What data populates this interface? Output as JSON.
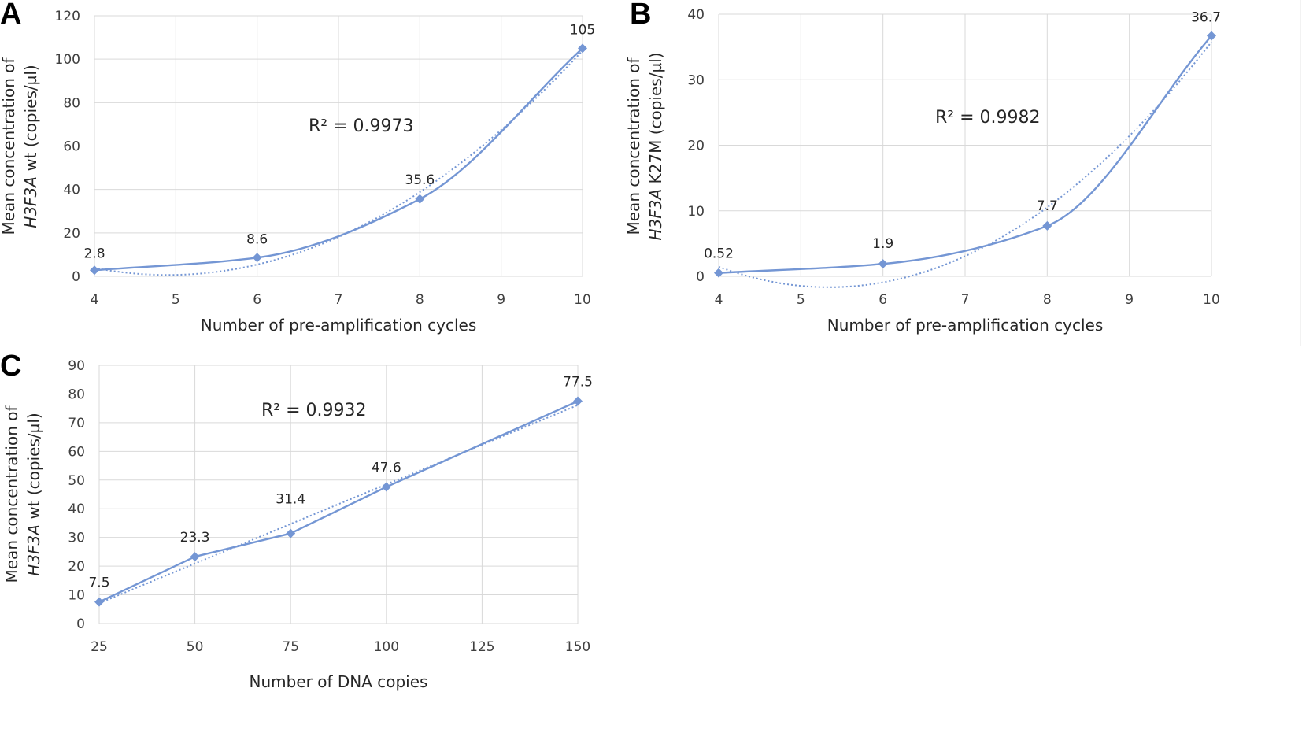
{
  "colors": {
    "series": "#7496d4",
    "grid": "#d9d9d9"
  },
  "chart_data": [
    {
      "panel": "A",
      "type": "line",
      "x": [
        4,
        6,
        8,
        10
      ],
      "values": [
        2.8,
        8.6,
        35.6,
        105
      ],
      "data_labels": [
        "2.8",
        "8.6",
        "35.6",
        "105"
      ],
      "xlabel": "Number of pre-amplification cycles",
      "ylabel_lines": [
        [
          {
            "text": "Mean concentration of",
            "italic": false
          }
        ],
        [
          {
            "text": "H3F3A",
            "italic": true
          },
          {
            "text": " wt (copies/µl)",
            "italic": false
          }
        ]
      ],
      "xlim": [
        4,
        10
      ],
      "ylim": [
        0,
        120
      ],
      "xticks": [
        "4",
        "5",
        "6",
        "7",
        "8",
        "9",
        "10"
      ],
      "yticks": [
        "0",
        "20",
        "40",
        "60",
        "80",
        "100",
        "120"
      ],
      "r2_text": "R² = 0.9973",
      "trendline": "dotted",
      "smooth": true,
      "grid": true
    },
    {
      "panel": "B",
      "type": "line",
      "x": [
        4,
        6,
        8,
        10
      ],
      "values": [
        0.52,
        1.9,
        7.7,
        36.7
      ],
      "data_labels": [
        "0.52",
        "1.9",
        "7.7",
        "36.7"
      ],
      "xlabel": "Number of pre-amplification cycles",
      "ylabel_lines": [
        [
          {
            "text": "Mean concentration of",
            "italic": false
          }
        ],
        [
          {
            "text": "H3F3A",
            "italic": true
          },
          {
            "text": " K27M (copies/µl)",
            "italic": false
          }
        ]
      ],
      "xlim": [
        4,
        10
      ],
      "ylim": [
        0,
        40
      ],
      "xticks": [
        "4",
        "5",
        "6",
        "7",
        "8",
        "9",
        "10"
      ],
      "yticks": [
        "0",
        "10",
        "20",
        "30",
        "40"
      ],
      "r2_text": "R² = 0.9982",
      "trendline": "dotted",
      "smooth": true,
      "grid": true
    },
    {
      "panel": "C",
      "type": "line",
      "x": [
        25,
        50,
        75,
        100,
        150
      ],
      "values": [
        7.5,
        23.3,
        31.4,
        47.6,
        77.5
      ],
      "data_labels": [
        "7.5",
        "23.3",
        "31.4",
        "47.6",
        "77.5"
      ],
      "xlabel": "Number of DNA copies",
      "ylabel_lines": [
        [
          {
            "text": "Mean concentration of",
            "italic": false
          }
        ],
        [
          {
            "text": "H3F3A",
            "italic": true
          },
          {
            "text": " wt (copies/µl)",
            "italic": false
          }
        ]
      ],
      "xlim": [
        25,
        150
      ],
      "ylim": [
        0,
        90
      ],
      "xticks": [
        "25",
        "50",
        "75",
        "100",
        "125",
        "150"
      ],
      "yticks": [
        "0",
        "10",
        "20",
        "30",
        "40",
        "50",
        "60",
        "70",
        "80",
        "90"
      ],
      "r2_text": "R² = 0.9932",
      "trendline": "dotted",
      "smooth": false,
      "grid": true
    }
  ]
}
